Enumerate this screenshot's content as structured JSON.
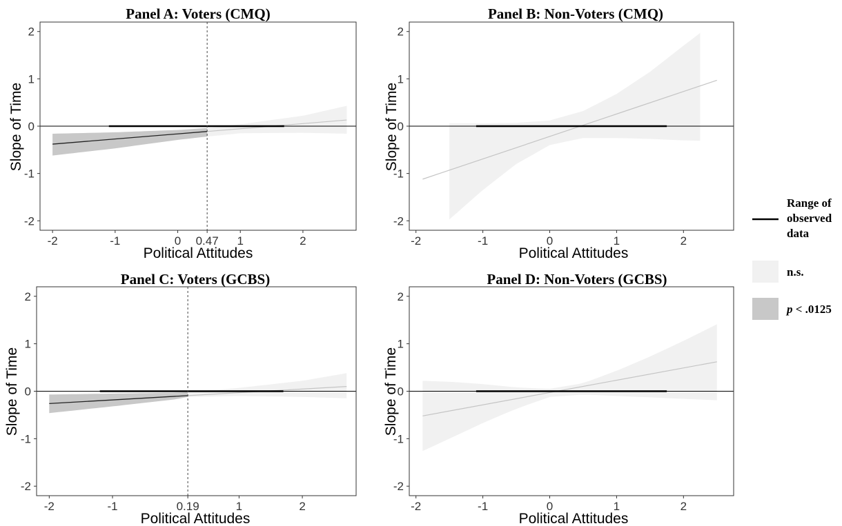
{
  "chart_data": [
    {
      "type": "line",
      "title": "Panel A: Voters (CMQ)",
      "xlabel": "Political Attitudes",
      "ylabel": "Slope of Time",
      "xlim": [
        -2.2,
        2.85
      ],
      "ylim": [
        -2.2,
        2.2
      ],
      "xticks": [
        "-2",
        "-1",
        "0",
        "0.47",
        "1",
        "2"
      ],
      "xtick_values": [
        -2,
        -1,
        0,
        0.47,
        1,
        2
      ],
      "yticks": [
        "-2",
        "-1",
        "0",
        "1",
        "2"
      ],
      "ytick_values": [
        -2,
        -1,
        0,
        1,
        2
      ],
      "jn_point": 0.47,
      "observed_range": [
        -1.1,
        1.7
      ],
      "line": {
        "x": [
          -2,
          2.7
        ],
        "y": [
          -0.38,
          0.13
        ]
      },
      "band_upper": {
        "x": [
          -2,
          -1,
          0,
          0.47,
          1,
          2,
          2.7
        ],
        "y": [
          -0.16,
          -0.13,
          -0.08,
          -0.04,
          0.04,
          0.22,
          0.43
        ]
      },
      "band_lower": {
        "x": [
          -2,
          -1,
          0,
          0.47,
          1,
          2,
          2.7
        ],
        "y": [
          -0.62,
          -0.47,
          -0.29,
          -0.22,
          -0.15,
          -0.14,
          -0.16
        ]
      },
      "significant_below": 0.47,
      "grid": false
    },
    {
      "type": "line",
      "title": "Panel B: Non-Voters (CMQ)",
      "xlabel": "Political Attitudes",
      "ylabel": "Slope of Time",
      "xlim": [
        -2.1,
        2.75
      ],
      "ylim": [
        -2.2,
        2.2
      ],
      "xticks": [
        "-2",
        "-1",
        "0",
        "1",
        "2"
      ],
      "xtick_values": [
        -2,
        -1,
        0,
        1,
        2
      ],
      "yticks": [
        "-2",
        "-1",
        "0",
        "1",
        "2"
      ],
      "ytick_values": [
        -2,
        -1,
        0,
        1,
        2
      ],
      "observed_range": [
        -1.1,
        1.75
      ],
      "line": {
        "x": [
          -1.9,
          2.5
        ],
        "y": [
          -1.12,
          0.97
        ]
      },
      "band_upper": {
        "x": [
          -1.5,
          -1,
          -0.5,
          0,
          0.5,
          1,
          1.5,
          2,
          2.25
        ],
        "y": [
          0.06,
          0.06,
          0.07,
          0.12,
          0.32,
          0.68,
          1.15,
          1.7,
          1.97
        ]
      },
      "band_lower": {
        "x": [
          -1.5,
          -1,
          -0.5,
          0,
          0.5,
          1,
          1.5,
          2,
          2.25
        ],
        "y": [
          -1.97,
          -1.35,
          -0.8,
          -0.4,
          -0.25,
          -0.25,
          -0.27,
          -0.3,
          -0.31
        ]
      },
      "grid": false
    },
    {
      "type": "line",
      "title": "Panel C: Voters (GCBS)",
      "xlabel": "Political Attitudes",
      "ylabel": "Slope of Time",
      "xlim": [
        -2.2,
        2.85
      ],
      "ylim": [
        -2.2,
        2.2
      ],
      "xticks": [
        "-2",
        "-1",
        "0.19",
        "1",
        "2"
      ],
      "xtick_values": [
        -2,
        -1,
        0.19,
        1,
        2
      ],
      "yticks": [
        "-2",
        "-1",
        "0",
        "1",
        "2"
      ],
      "ytick_values": [
        -2,
        -1,
        0,
        1,
        2
      ],
      "jn_point": 0.19,
      "observed_range": [
        -1.2,
        1.7
      ],
      "line": {
        "x": [
          -2,
          2.7
        ],
        "y": [
          -0.26,
          0.1
        ]
      },
      "band_upper": {
        "x": [
          -2,
          -1,
          0,
          0.19,
          1,
          2,
          2.7
        ],
        "y": [
          -0.07,
          -0.05,
          -0.03,
          -0.02,
          0.07,
          0.22,
          0.38
        ]
      },
      "band_lower": {
        "x": [
          -2,
          -1,
          0,
          0.19,
          1,
          2,
          2.7
        ],
        "y": [
          -0.46,
          -0.32,
          -0.17,
          -0.12,
          -0.1,
          -0.12,
          -0.15
        ]
      },
      "significant_below": 0.19,
      "grid": false
    },
    {
      "type": "line",
      "title": "Panel D: Non-Voters (GCBS)",
      "xlabel": "Political Attitudes",
      "ylabel": "Slope of Time",
      "xlim": [
        -2.1,
        2.75
      ],
      "ylim": [
        -2.2,
        2.2
      ],
      "xticks": [
        "-2",
        "-1",
        "0",
        "1",
        "2"
      ],
      "xtick_values": [
        -2,
        -1,
        0,
        1,
        2
      ],
      "yticks": [
        "-2",
        "-1",
        "0",
        "1",
        "2"
      ],
      "ytick_values": [
        -2,
        -1,
        0,
        1,
        2
      ],
      "observed_range": [
        -1.1,
        1.75
      ],
      "line": {
        "x": [
          -1.9,
          2.5
        ],
        "y": [
          -0.52,
          0.62
        ]
      },
      "band_upper": {
        "x": [
          -1.9,
          -1.5,
          -1,
          -0.5,
          0,
          0.5,
          1,
          1.5,
          2,
          2.5
        ],
        "y": [
          0.22,
          0.2,
          0.15,
          0.08,
          0.05,
          0.17,
          0.43,
          0.73,
          1.06,
          1.41
        ]
      },
      "band_lower": {
        "x": [
          -1.9,
          -1.5,
          -1,
          -0.5,
          0,
          0.5,
          1,
          1.5,
          2,
          2.5
        ],
        "y": [
          -1.26,
          -1.0,
          -0.67,
          -0.37,
          -0.12,
          -0.07,
          -0.1,
          -0.13,
          -0.16,
          -0.19
        ]
      },
      "grid": false
    }
  ],
  "legend": {
    "placement": "right",
    "items": [
      {
        "kind": "line",
        "lines": [
          "Range of",
          "observed",
          "data"
        ]
      },
      {
        "kind": "fill",
        "color": "#f1f1f1",
        "label": "n.s.",
        "italic_prefix": ""
      },
      {
        "kind": "fill",
        "color": "#c8c8c8",
        "label": " < .0125",
        "italic_prefix": "p"
      }
    ]
  },
  "colors": {
    "ns_fill": "#f1f1f1",
    "sig_fill": "#c8c8c8",
    "range_line": "#000000",
    "fit_line_sig": "#222222",
    "fit_line_ns": "#c4c4c4",
    "zero_line": "#000000",
    "jn_line": "#444444"
  }
}
